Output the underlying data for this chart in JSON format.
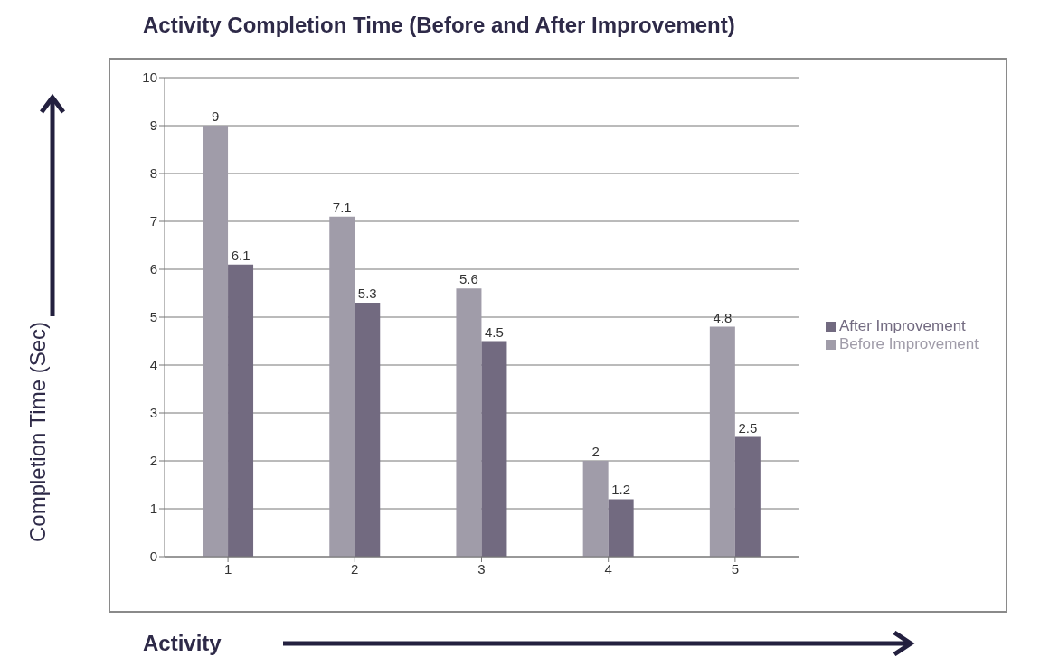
{
  "chart_data": {
    "type": "bar",
    "title": "Activity Completion Time (Before and After Improvement)",
    "xlabel": "Activity",
    "ylabel": "Completion Time (Sec)",
    "categories": [
      "1",
      "2",
      "3",
      "4",
      "5"
    ],
    "series": [
      {
        "name": "Before Improvement",
        "color": "#a09ca9",
        "values": [
          9,
          7.1,
          5.6,
          2,
          4.8
        ]
      },
      {
        "name": "After Improvement",
        "color": "#726a80",
        "values": [
          6.1,
          5.3,
          4.5,
          1.2,
          2.5
        ]
      }
    ],
    "ylim": [
      0,
      10
    ],
    "yticks": [
      0,
      1,
      2,
      3,
      4,
      5,
      6,
      7,
      8,
      9,
      10
    ],
    "grid": "y",
    "legend": "right",
    "data_labels": true
  }
}
